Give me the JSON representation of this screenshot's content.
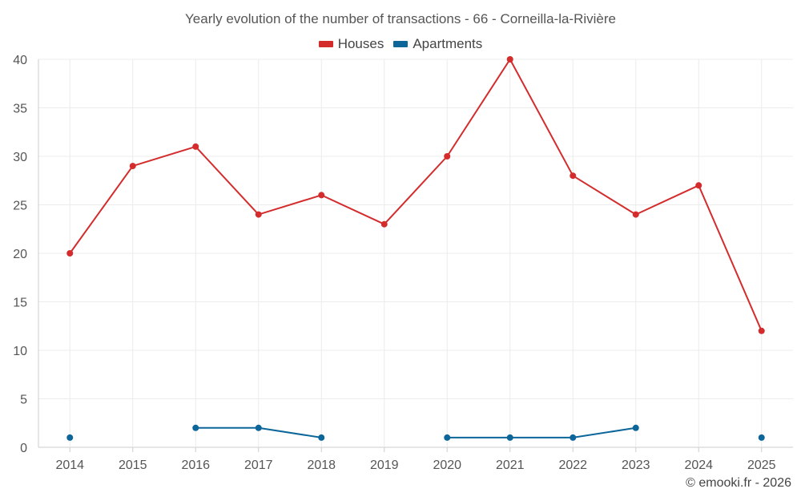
{
  "chart_data": {
    "type": "line",
    "title": "Yearly evolution of the number of transactions - 66 - Corneilla-la-Rivière",
    "categories": [
      "2014",
      "2015",
      "2016",
      "2017",
      "2018",
      "2019",
      "2020",
      "2021",
      "2022",
      "2023",
      "2024",
      "2025"
    ],
    "series": [
      {
        "name": "Houses",
        "color": "#d42c2c",
        "values": [
          20,
          29,
          31,
          24,
          26,
          23,
          30,
          40,
          28,
          24,
          27,
          12
        ]
      },
      {
        "name": "Apartments",
        "color": "#0c6699",
        "values": [
          1,
          null,
          2,
          2,
          1,
          null,
          1,
          1,
          1,
          2,
          null,
          1
        ]
      }
    ],
    "ylim": [
      0,
      40
    ],
    "yticks": [
      "0",
      "5",
      "10",
      "15",
      "20",
      "25",
      "30",
      "35",
      "40"
    ],
    "xlabel": "",
    "ylabel": "",
    "grid": true,
    "legend_position": "top-center"
  },
  "credit": "© emooki.fr - 2026"
}
